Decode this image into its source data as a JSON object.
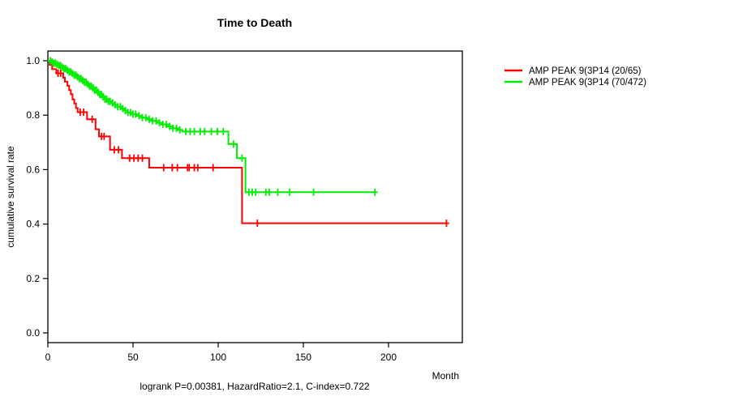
{
  "title": "Time to Death",
  "axes": {
    "ylabel": "cumulative survival rate",
    "xlabel": "Month"
  },
  "caption": "logrank P=0.00381, HazardRatio=2.1, C-index=0.722",
  "colors": {
    "series1": "#ff0000",
    "series2": "#00ee00",
    "axis": "#000000",
    "background": "#ffffff"
  },
  "legend": {
    "position": "right-outside",
    "entries": [
      {
        "label": "AMP PEAK 9(3P14 (20/65)",
        "color": "#ff0000"
      },
      {
        "label": "AMP PEAK 9(3P14 (70/472)",
        "color": "#00ee00"
      }
    ]
  },
  "chart_data": {
    "type": "line",
    "subtype": "kaplan-meier-step-survival",
    "title": "Time to Death",
    "xlabel": "Month",
    "ylabel": "cumulative survival rate",
    "xlim": [
      0,
      243
    ],
    "ylim": [
      0.0,
      1.0
    ],
    "xticks": [
      0,
      50,
      100,
      150,
      200
    ],
    "yticks": [
      0.0,
      0.2,
      0.4,
      0.6,
      0.8,
      1.0
    ],
    "grid": false,
    "legend_position": "right-outside",
    "annotation": "logrank P=0.00381, HazardRatio=2.1, C-index=0.722",
    "series": [
      {
        "name": "AMP PEAK 9(3P14 (20/65)",
        "color": "#ff0000",
        "events": "20/65",
        "end_month": 234,
        "steps": [
          [
            0,
            1.0
          ],
          [
            1,
            0.985
          ],
          [
            2.5,
            0.969
          ],
          [
            5,
            0.954
          ],
          [
            9,
            0.938
          ],
          [
            10,
            0.923
          ],
          [
            11.5,
            0.908
          ],
          [
            12.5,
            0.892
          ],
          [
            13.5,
            0.877
          ],
          [
            14.5,
            0.858
          ],
          [
            15.5,
            0.843
          ],
          [
            16.5,
            0.826
          ],
          [
            17.5,
            0.811
          ],
          [
            23,
            0.785
          ],
          [
            28,
            0.748
          ],
          [
            30,
            0.722
          ],
          [
            36.5,
            0.673
          ],
          [
            43.5,
            0.642
          ],
          [
            59.5,
            0.607
          ],
          [
            114,
            0.403
          ]
        ],
        "censor_months": [
          6,
          7.5,
          19,
          21,
          26,
          31.5,
          33,
          39,
          41.5,
          48,
          50.5,
          53,
          55.5,
          68,
          73,
          76,
          82,
          83,
          86,
          88,
          97,
          123,
          234
        ]
      },
      {
        "name": "AMP PEAK 9(3P14 (70/472)",
        "color": "#00ee00",
        "events": "70/472",
        "end_month": 192,
        "steps": [
          [
            0,
            1.0
          ],
          [
            2,
            0.996
          ],
          [
            3,
            0.991
          ],
          [
            5,
            0.987
          ],
          [
            6,
            0.982
          ],
          [
            8,
            0.976
          ],
          [
            9,
            0.971
          ],
          [
            11,
            0.965
          ],
          [
            12,
            0.959
          ],
          [
            14,
            0.953
          ],
          [
            15,
            0.947
          ],
          [
            17,
            0.941
          ],
          [
            18,
            0.934
          ],
          [
            20,
            0.928
          ],
          [
            21,
            0.921
          ],
          [
            23,
            0.914
          ],
          [
            24,
            0.907
          ],
          [
            26,
            0.9
          ],
          [
            27,
            0.892
          ],
          [
            29,
            0.884
          ],
          [
            30,
            0.876
          ],
          [
            32,
            0.868
          ],
          [
            33,
            0.859
          ],
          [
            35,
            0.851
          ],
          [
            37,
            0.845
          ],
          [
            39,
            0.838
          ],
          [
            41,
            0.831
          ],
          [
            43,
            0.824
          ],
          [
            45,
            0.817
          ],
          [
            47,
            0.81
          ],
          [
            49,
            0.804
          ],
          [
            52,
            0.798
          ],
          [
            55,
            0.791
          ],
          [
            58,
            0.785
          ],
          [
            61,
            0.779
          ],
          [
            64,
            0.772
          ],
          [
            67,
            0.766
          ],
          [
            70,
            0.759
          ],
          [
            73,
            0.752
          ],
          [
            76,
            0.746
          ],
          [
            79,
            0.74
          ],
          [
            106,
            0.694
          ],
          [
            111,
            0.642
          ],
          [
            116,
            0.517
          ]
        ],
        "censor_months": [
          1.5,
          2.5,
          3.5,
          4.5,
          5.5,
          6.5,
          7.5,
          8.5,
          9.5,
          10.5,
          11.5,
          12.5,
          13.5,
          14.5,
          15.5,
          16.5,
          17.5,
          18.5,
          19.5,
          20.5,
          21.5,
          22.5,
          23.5,
          24.5,
          25.5,
          26.5,
          27.5,
          28.5,
          29.5,
          30.5,
          31.5,
          32.5,
          33.5,
          34.5,
          35.5,
          36.5,
          38,
          39.5,
          41,
          42.5,
          44,
          45.5,
          47,
          48.5,
          50,
          51.5,
          53.5,
          55.5,
          57.5,
          59.5,
          61.5,
          63.5,
          65.5,
          67.5,
          69.5,
          71.5,
          73.5,
          75.5,
          77.5,
          81,
          83.5,
          86,
          89.5,
          92,
          96,
          99.5,
          103,
          109,
          114,
          118,
          120,
          122,
          128,
          130,
          135,
          142,
          156,
          192
        ]
      }
    ]
  }
}
